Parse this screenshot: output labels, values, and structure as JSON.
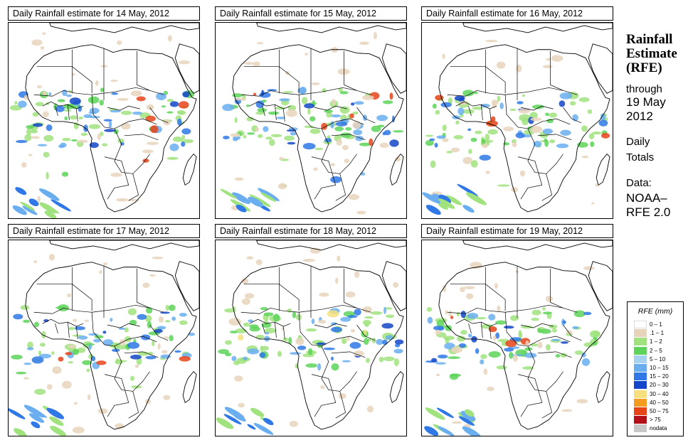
{
  "panels": [
    {
      "title": "Daily Rainfall estimate for  14 May, 2012"
    },
    {
      "title": "Daily Rainfall estimate for  15 May, 2012"
    },
    {
      "title": "Daily Rainfall estimate for  16 May, 2012"
    },
    {
      "title": "Daily Rainfall estimate for  17 May, 2012"
    },
    {
      "title": "Daily Rainfall estimate for  18 May, 2012"
    },
    {
      "title": "Daily Rainfall estimate for  19 May, 2012"
    }
  ],
  "sidebar": {
    "title_line1": "Rainfall",
    "title_line2": "Estimate",
    "title_line3": "(RFE)",
    "through": "through",
    "date_line1": "19 May",
    "date_line2": "2012",
    "daily": "Daily",
    "totals": "Totals",
    "data_label": "Data:",
    "source_line1": "NOAA–",
    "source_line2": "RFE 2.0"
  },
  "legend": {
    "title": "RFE (mm)",
    "items": [
      {
        "label": "0 – 1",
        "color": "#ffffff"
      },
      {
        "label": ".1 – 1",
        "color": "#e8d4bc"
      },
      {
        "label": "1 – 2",
        "color": "#a0e27e"
      },
      {
        "label": "2 – 5",
        "color": "#5ed35a"
      },
      {
        "label": "5 – 10",
        "color": "#a6d2f0"
      },
      {
        "label": "10 – 15",
        "color": "#6aaef0"
      },
      {
        "label": "15 – 20",
        "color": "#2f78e6"
      },
      {
        "label": "20 – 30",
        "color": "#1346c8"
      },
      {
        "label": "30 – 40",
        "color": "#f6e07e"
      },
      {
        "label": "40 – 50",
        "color": "#f39c1f"
      },
      {
        "label": "50 – 75",
        "color": "#e8441a"
      },
      {
        "label": "> 75",
        "color": "#b4101a"
      },
      {
        "label": "nodata",
        "color": "#c8c8c8"
      }
    ]
  }
}
